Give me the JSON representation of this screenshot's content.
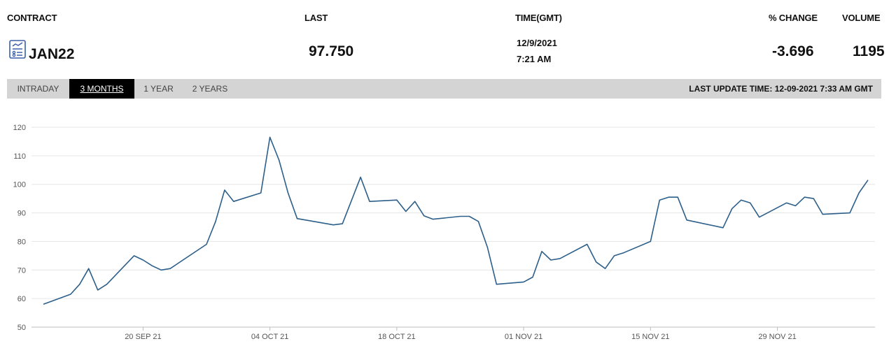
{
  "header": {
    "contract_label": "CONTRACT",
    "last_label": "LAST",
    "time_label": "TIME(GMT)",
    "change_label": "% CHANGE",
    "volume_label": "VOLUME"
  },
  "quote": {
    "icon": "chart-document-icon",
    "contract": "JAN22",
    "last": "97.750",
    "date": "12/9/2021",
    "time": "7:21 AM",
    "change": "-3.696",
    "volume": "1195"
  },
  "tabs": [
    {
      "label": "INTRADAY",
      "active": false
    },
    {
      "label": "3 MONTHS",
      "active": true
    },
    {
      "label": "1 YEAR",
      "active": false
    },
    {
      "label": "2 YEARS",
      "active": false
    }
  ],
  "last_update": "LAST UPDATE TIME: 12-09-2021 7:33 AM GMT",
  "colors": {
    "line": "#2c5f8a",
    "grid": "#e6e6e6",
    "tab_bar": "#d4d4d4",
    "tab_active": "#000000"
  },
  "chart_data": {
    "type": "line",
    "title": "",
    "xlabel": "",
    "ylabel": "",
    "ylim": [
      50,
      120
    ],
    "xlim": [
      "2021-09-09",
      "2021-12-09"
    ],
    "yticks": [
      50,
      60,
      70,
      80,
      90,
      100,
      110,
      120
    ],
    "xticks": [
      {
        "date": "2021-09-20",
        "label": "20 SEP 21"
      },
      {
        "date": "2021-10-04",
        "label": "04 OCT 21"
      },
      {
        "date": "2021-10-18",
        "label": "18 OCT 21"
      },
      {
        "date": "2021-11-01",
        "label": "01 NOV 21"
      },
      {
        "date": "2021-11-15",
        "label": "15 NOV 21"
      },
      {
        "date": "2021-11-29",
        "label": "29 NOV 21"
      }
    ],
    "grid": true,
    "legend": "none",
    "series": [
      {
        "points": [
          [
            "2021-09-09",
            58.0
          ],
          [
            "2021-09-12",
            61.5
          ],
          [
            "2021-09-13",
            65.0
          ],
          [
            "2021-09-14",
            70.5
          ],
          [
            "2021-09-15",
            63.0
          ],
          [
            "2021-09-16",
            65.0
          ],
          [
            "2021-09-19",
            75.0
          ],
          [
            "2021-09-20",
            73.5
          ],
          [
            "2021-09-21",
            71.5
          ],
          [
            "2021-09-22",
            70.0
          ],
          [
            "2021-09-23",
            70.5
          ],
          [
            "2021-09-27",
            79.0
          ],
          [
            "2021-09-28",
            87.0
          ],
          [
            "2021-09-29",
            98.0
          ],
          [
            "2021-09-30",
            94.0
          ],
          [
            "2021-10-03",
            97.0
          ],
          [
            "2021-10-04",
            116.5
          ],
          [
            "2021-10-05",
            108.5
          ],
          [
            "2021-10-06",
            97.0
          ],
          [
            "2021-10-07",
            88.0
          ],
          [
            "2021-10-11",
            85.8
          ],
          [
            "2021-10-12",
            86.2
          ],
          [
            "2021-10-14",
            102.5
          ],
          [
            "2021-10-15",
            94.0
          ],
          [
            "2021-10-18",
            94.5
          ],
          [
            "2021-10-19",
            90.5
          ],
          [
            "2021-10-20",
            94.0
          ],
          [
            "2021-10-21",
            89.0
          ],
          [
            "2021-10-22",
            87.8
          ],
          [
            "2021-10-25",
            88.8
          ],
          [
            "2021-10-26",
            88.8
          ],
          [
            "2021-10-27",
            87.0
          ],
          [
            "2021-10-28",
            78.0
          ],
          [
            "2021-10-29",
            65.0
          ],
          [
            "2021-11-01",
            65.8
          ],
          [
            "2021-11-02",
            67.5
          ],
          [
            "2021-11-03",
            76.5
          ],
          [
            "2021-11-04",
            73.5
          ],
          [
            "2021-11-05",
            74.0
          ],
          [
            "2021-11-08",
            79.0
          ],
          [
            "2021-11-09",
            72.8
          ],
          [
            "2021-11-10",
            70.5
          ],
          [
            "2021-11-11",
            75.0
          ],
          [
            "2021-11-12",
            76.0
          ],
          [
            "2021-11-15",
            80.0
          ],
          [
            "2021-11-16",
            94.5
          ],
          [
            "2021-11-17",
            95.5
          ],
          [
            "2021-11-18",
            95.5
          ],
          [
            "2021-11-19",
            87.5
          ],
          [
            "2021-11-23",
            84.8
          ],
          [
            "2021-11-24",
            91.5
          ],
          [
            "2021-11-25",
            94.5
          ],
          [
            "2021-11-26",
            93.5
          ],
          [
            "2021-11-27",
            88.5
          ],
          [
            "2021-11-30",
            93.5
          ],
          [
            "2021-12-01",
            92.5
          ],
          [
            "2021-12-02",
            95.5
          ],
          [
            "2021-12-03",
            95.0
          ],
          [
            "2021-12-04",
            89.5
          ],
          [
            "2021-12-07",
            90.0
          ],
          [
            "2021-12-08",
            97.0
          ],
          [
            "2021-12-09",
            101.5
          ]
        ]
      }
    ]
  }
}
